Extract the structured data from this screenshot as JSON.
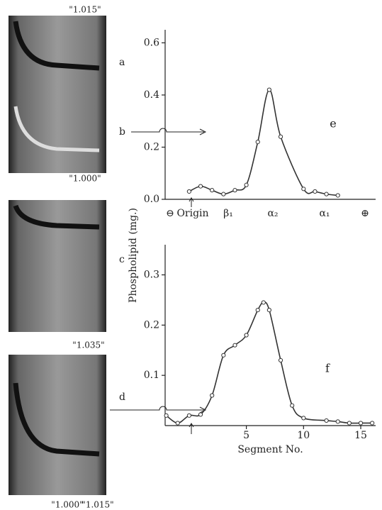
{
  "chart_data": [
    {
      "type": "line",
      "panel_label": "e",
      "color": "#333333",
      "x": [
        0,
        1,
        2,
        3,
        4,
        5,
        6,
        7,
        8,
        10,
        11,
        12,
        13
      ],
      "values": [
        0.03,
        0.05,
        0.035,
        0.02,
        0.035,
        0.055,
        0.22,
        0.42,
        0.24,
        0.04,
        0.03,
        0.02,
        0.015
      ],
      "xlim": [
        -2.1,
        16.3
      ],
      "ylim": [
        0,
        0.65
      ],
      "yticks": [
        {
          "value": 0,
          "label": "0.0"
        },
        0.2,
        0.4,
        0.6
      ],
      "zone_labels": [
        "⊖",
        "Origin",
        "β₁",
        "α₂",
        "α₁",
        "⊕"
      ]
    },
    {
      "type": "line",
      "panel_label": "f",
      "color": "#333333",
      "x": [
        -2,
        -1,
        0,
        1,
        2,
        3,
        4,
        5,
        6,
        6.5,
        7,
        8,
        9,
        10,
        12,
        13,
        14,
        15,
        16
      ],
      "values": [
        0.02,
        0.005,
        0.02,
        0.022,
        0.06,
        0.14,
        0.16,
        0.18,
        0.23,
        0.245,
        0.23,
        0.13,
        0.04,
        0.015,
        0.01,
        0.008,
        0.005,
        0.005,
        0.005
      ],
      "xlim": [
        -2.1,
        16.3
      ],
      "ylim": [
        0,
        0.36
      ],
      "yticks": [
        0.1,
        0.2,
        0.3
      ],
      "xticks": [
        5,
        10,
        15
      ],
      "xlabel": "Segment No.",
      "ylabel": "Phospholipid (mg.)"
    }
  ],
  "photo_labels": [
    "a",
    "b",
    "c",
    "d"
  ],
  "density_labels": [
    "\"1.015\"",
    "\"1.000\"",
    "\"1.035\"",
    "\"1.000\"",
    "\"1.015\""
  ]
}
